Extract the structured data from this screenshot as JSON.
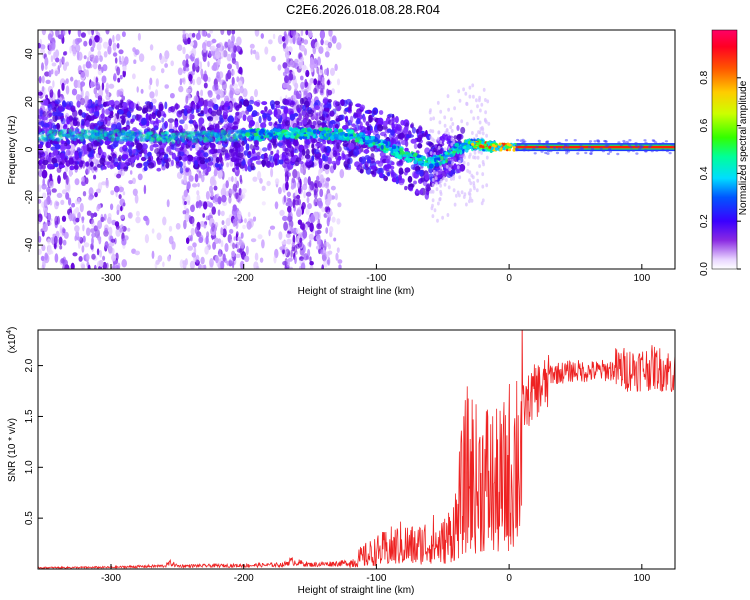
{
  "title": "C2E6.2026.018.08.28.R04",
  "chart_data": [
    {
      "type": "heatmap",
      "xlabel": "Height of straight line (km)",
      "ylabel": "Frequency (Hz)",
      "xlim": [
        -355,
        125
      ],
      "ylim": [
        -50,
        50
      ],
      "xticks": [
        -300,
        -200,
        -100,
        0,
        100
      ],
      "yticks": [
        -40,
        -20,
        0,
        20,
        40
      ],
      "colorbar": {
        "label": "Normalized spectral amplitude",
        "range": [
          0.0,
          1.0
        ],
        "ticks": [
          "0.0",
          "0.2",
          "0.4",
          "0.6",
          "0.8"
        ],
        "colormap": [
          "#ffffff",
          "#e6c8ff",
          "#7a00ff",
          "#0000ff",
          "#00ffff",
          "#00ff00",
          "#ffff00",
          "#ff7f00",
          "#ff0000",
          "#ff0066"
        ]
      },
      "center_line": {
        "x": [
          -355,
          -300,
          -250,
          -200,
          -150,
          -120,
          -100,
          -80,
          -60,
          -50,
          -40,
          -30,
          -20,
          -10,
          0,
          10,
          50,
          100,
          125
        ],
        "y": [
          6,
          6,
          5,
          6,
          7,
          6,
          3,
          -2,
          -6,
          -4,
          0,
          2,
          2,
          1,
          1,
          1,
          1,
          1,
          1
        ]
      }
    },
    {
      "type": "line",
      "xlabel": "Height of straight line (km)",
      "ylabel": "SNR (10 * v/v)",
      "scale_label": "(x10",
      "scale_exp": "4",
      "xlim": [
        -355,
        125
      ],
      "ylim": [
        0,
        23500
      ],
      "xticks": [
        -300,
        -200,
        -100,
        0,
        100
      ],
      "yticks": [
        "0.5",
        "1.0",
        "1.5",
        "2.0"
      ],
      "ytick_values": [
        5000,
        10000,
        15000,
        20000
      ],
      "series": [
        {
          "color": "#ee2222",
          "envelope_x": [
            -355,
            -300,
            -260,
            -255,
            -250,
            -200,
            -170,
            -165,
            -150,
            -120,
            -110,
            -100,
            -90,
            -80,
            -70,
            -60,
            -50,
            -45,
            -40,
            -35,
            -30,
            -25,
            -20,
            -15,
            -10,
            -5,
            0,
            5,
            10,
            20,
            30,
            40,
            50,
            60,
            80,
            100,
            110,
            120,
            125
          ],
          "envelope_y": [
            150,
            200,
            350,
            700,
            350,
            400,
            500,
            900,
            500,
            700,
            1500,
            2000,
            2500,
            3000,
            2600,
            3500,
            3000,
            4000,
            5500,
            9000,
            12000,
            10000,
            11000,
            10500,
            9500,
            10000,
            11500,
            14000,
            16500,
            18500,
            19200,
            19300,
            19500,
            19400,
            19600,
            19700,
            19800,
            19500,
            19200
          ]
        }
      ]
    }
  ]
}
